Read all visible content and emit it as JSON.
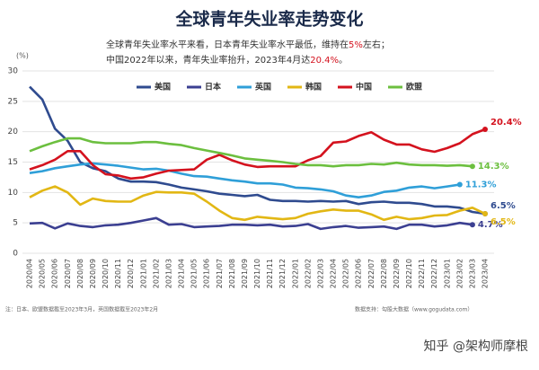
{
  "chart_data": {
    "type": "line",
    "title": "全球青年失业率走势变化",
    "subtitle": [
      [
        {
          "text": "全球青年失业率水平来看，日本青年失业率水平最低，维持在",
          "color": "#333333"
        },
        {
          "text": "5%",
          "color": "#d4121e"
        },
        {
          "text": "左右；",
          "color": "#333333"
        }
      ],
      [
        {
          "text": "中国2022年以来，青年失业率抬升，2023年4月达",
          "color": "#333333"
        },
        {
          "text": "20.4%",
          "color": "#d4121e"
        },
        {
          "text": "。",
          "color": "#333333"
        }
      ]
    ],
    "y_unit": "(%)",
    "categories": [
      "2020/04",
      "2020/05",
      "2020/06",
      "2020/07",
      "2020/08",
      "2020/09",
      "2020/10",
      "2020/11",
      "2020/12",
      "2021/01",
      "2021/02",
      "2021/03",
      "2021/04",
      "2021/05",
      "2021/06",
      "2021/07",
      "2021/08",
      "2021/09",
      "2021/10",
      "2021/11",
      "2021/12",
      "2022/01",
      "2022/02",
      "2022/03",
      "2022/04",
      "2022/05",
      "2022/06",
      "2022/07",
      "2022/08",
      "2022/09",
      "2022/10",
      "2022/11",
      "2022/12",
      "2023/01",
      "2023/02",
      "2023/03",
      "2023/04"
    ],
    "ylim": [
      0,
      30
    ],
    "yticks": [
      0,
      5,
      10,
      15,
      20,
      25,
      30
    ],
    "grid": true,
    "series": [
      {
        "name": "美国",
        "color": "#2f4b8f",
        "values": [
          27.4,
          25.3,
          20.5,
          18.5,
          15,
          14,
          13.5,
          12.3,
          11.8,
          11.8,
          11.7,
          11.3,
          10.8,
          10.5,
          10.2,
          9.8,
          9.6,
          9.4,
          9.6,
          8.8,
          8.6,
          8.6,
          8.5,
          8.6,
          8.5,
          8.6,
          8.1,
          8.4,
          8.5,
          8.3,
          8.3,
          8.1,
          7.7,
          7.7,
          7.5,
          6.8,
          6.5
        ],
        "value_labels": [
          null,
          null,
          null,
          null,
          null,
          null,
          null,
          null,
          null,
          null,
          null,
          null,
          null,
          null,
          null,
          null,
          null,
          null,
          null,
          null,
          null,
          null,
          null,
          null,
          null,
          null,
          null,
          null,
          null,
          null,
          null,
          null,
          null,
          null,
          null,
          null,
          "6.5%"
        ]
      },
      {
        "name": "日本",
        "color": "#3b3f91",
        "values": [
          4.9,
          5.0,
          4.1,
          4.9,
          4.5,
          4.3,
          4.6,
          4.7,
          5.0,
          5.4,
          5.8,
          4.7,
          4.8,
          4.3,
          4.4,
          4.5,
          4.7,
          4.7,
          4.6,
          4.7,
          4.4,
          4.5,
          4.8,
          4.0,
          4.3,
          4.5,
          4.2,
          4.3,
          4.4,
          4.0,
          4.7,
          4.7,
          4.4,
          4.6,
          5.0,
          4.7,
          null
        ],
        "value_labels": [
          null,
          null,
          null,
          null,
          null,
          null,
          null,
          null,
          null,
          null,
          null,
          null,
          null,
          null,
          null,
          null,
          null,
          null,
          null,
          null,
          null,
          null,
          null,
          null,
          null,
          null,
          null,
          null,
          null,
          null,
          null,
          null,
          null,
          null,
          null,
          "4.7%",
          null
        ]
      },
      {
        "name": "英国",
        "color": "#2f9fd8",
        "values": [
          13.2,
          13.5,
          14.0,
          14.3,
          14.6,
          14.8,
          14.6,
          14.4,
          14.1,
          13.8,
          13.9,
          13.6,
          13.1,
          12.7,
          12.6,
          12.3,
          12.0,
          11.8,
          11.5,
          11.5,
          11.3,
          10.8,
          10.7,
          10.5,
          10.2,
          9.5,
          9.2,
          9.5,
          10.1,
          10.3,
          10.8,
          11.0,
          10.7,
          11.0,
          11.3,
          null,
          null
        ],
        "value_labels": [
          null,
          null,
          null,
          null,
          null,
          null,
          null,
          null,
          null,
          null,
          null,
          null,
          null,
          null,
          null,
          null,
          null,
          null,
          null,
          null,
          null,
          null,
          null,
          null,
          null,
          null,
          null,
          null,
          null,
          null,
          null,
          null,
          null,
          null,
          "11.3%",
          null,
          null
        ]
      },
      {
        "name": "韩国",
        "color": "#e2b714",
        "values": [
          9.2,
          10.3,
          11.0,
          10.0,
          8.0,
          9.0,
          8.6,
          8.5,
          8.5,
          9.5,
          10.1,
          10.0,
          10.0,
          9.8,
          8.5,
          7.0,
          5.8,
          5.5,
          6.0,
          5.8,
          5.6,
          5.8,
          6.5,
          6.9,
          7.2,
          7.0,
          7.0,
          6.4,
          5.5,
          6.0,
          5.6,
          5.8,
          6.2,
          6.3,
          7.0,
          7.5,
          6.5
        ],
        "value_labels": [
          null,
          null,
          null,
          null,
          null,
          null,
          null,
          null,
          null,
          null,
          null,
          null,
          null,
          null,
          null,
          null,
          null,
          null,
          null,
          null,
          null,
          null,
          null,
          null,
          null,
          null,
          null,
          null,
          null,
          null,
          null,
          null,
          null,
          null,
          null,
          null,
          "6.5%"
        ]
      },
      {
        "name": "中国",
        "color": "#d4121e",
        "values": [
          13.8,
          14.5,
          15.4,
          16.8,
          16.8,
          14.5,
          13.0,
          12.8,
          12.3,
          12.5,
          13.1,
          13.6,
          13.7,
          13.8,
          15.4,
          16.2,
          15.3,
          14.6,
          14.2,
          14.3,
          14.3,
          14.3,
          15.3,
          16.0,
          18.2,
          18.4,
          19.3,
          19.9,
          18.7,
          17.9,
          17.9,
          17.1,
          16.7,
          17.3,
          18.1,
          19.6,
          20.4
        ],
        "value_labels": [
          null,
          null,
          null,
          null,
          null,
          null,
          null,
          null,
          null,
          null,
          null,
          null,
          null,
          null,
          null,
          null,
          null,
          null,
          null,
          null,
          null,
          null,
          null,
          null,
          null,
          null,
          null,
          null,
          null,
          null,
          null,
          null,
          null,
          null,
          null,
          null,
          "20.4%"
        ]
      },
      {
        "name": "欧盟",
        "color": "#6cbf3f",
        "values": [
          16.8,
          17.6,
          18.3,
          18.9,
          18.9,
          18.3,
          18.1,
          18.1,
          18.1,
          18.3,
          18.3,
          18.0,
          17.8,
          17.3,
          16.9,
          16.5,
          16.1,
          15.6,
          15.4,
          15.2,
          15.0,
          14.7,
          14.5,
          14.5,
          14.3,
          14.5,
          14.5,
          14.7,
          14.6,
          14.9,
          14.6,
          14.5,
          14.5,
          14.4,
          14.5,
          14.3,
          null
        ],
        "value_labels": [
          null,
          null,
          null,
          null,
          null,
          null,
          null,
          null,
          null,
          null,
          null,
          null,
          null,
          null,
          null,
          null,
          null,
          null,
          null,
          null,
          null,
          null,
          null,
          null,
          null,
          null,
          null,
          null,
          null,
          null,
          null,
          null,
          null,
          null,
          null,
          "14.3%",
          null
        ]
      }
    ],
    "footnote": "注：日本、欧盟数据截至2023年3月，英国数据截至2023年2月",
    "source": "数据支持：勾股大数据（www.gogudata.com）",
    "watermark": "知乎 @架构师摩根"
  }
}
